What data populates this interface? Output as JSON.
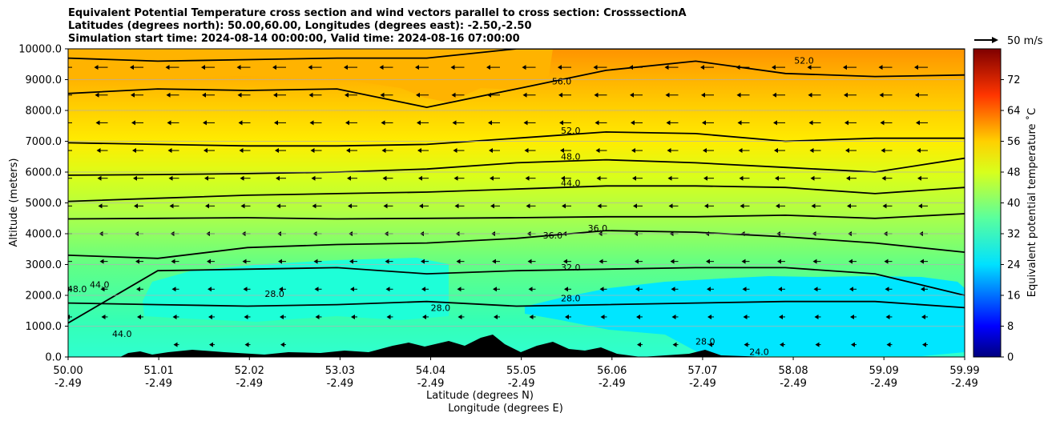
{
  "header": {
    "line1": "Equivalent Potential Temperature cross section and wind vectors parallel to cross section: CrosssectionA",
    "line2": "Latitudes (degrees north): 50.00,60.00, Longitudes (degrees east): -2.50,-2.50",
    "line3": "Simulation start time: 2024-08-14 00:00:00, Valid time: 2024-08-16 07:00:00"
  },
  "chart_data": {
    "type": "contour",
    "ylabel": "Altitude (meters)",
    "xlabel_1": "Latitude (degrees N)",
    "xlabel_2": "Longitude (degrees E)",
    "ylim": [
      0,
      10000
    ],
    "y_ticks": [
      "0.0",
      "1000.0",
      "2000.0",
      "3000.0",
      "4000.0",
      "5000.0",
      "6000.0",
      "7000.0",
      "8000.0",
      "9000.0",
      "10000.0"
    ],
    "x_ticks_lat": [
      "50.00",
      "51.01",
      "52.02",
      "53.03",
      "54.04",
      "55.05",
      "56.06",
      "57.07",
      "58.08",
      "59.09",
      "59.99"
    ],
    "x_ticks_lon": [
      "-2.49",
      "-2.49",
      "-2.49",
      "-2.49",
      "-2.49",
      "-2.49",
      "-2.49",
      "-2.49",
      "-2.49",
      "-2.49",
      "-2.49"
    ],
    "colorbar": {
      "label": "Equivalent potential temperature $^\\circ$C",
      "label_display": "Equivalent potential temperature ˚C",
      "range": [
        0,
        80
      ],
      "ticks": [
        "0",
        "8",
        "16",
        "24",
        "32",
        "40",
        "48",
        "56",
        "64",
        "72"
      ]
    },
    "quiver_key": "50 m/s",
    "contour_levels": [
      "24.0",
      "28.0",
      "32.0",
      "36.0",
      "40.0",
      "44.0",
      "48.0",
      "52.0",
      "56.0",
      "60.0"
    ],
    "contour_labels": [
      {
        "text": "52.0",
        "lat": 58.2,
        "alt": 9520
      },
      {
        "text": "56.0",
        "lat": 55.5,
        "alt": 8850
      },
      {
        "text": "52.0",
        "lat": 55.6,
        "alt": 7250
      },
      {
        "text": "48.0",
        "lat": 55.6,
        "alt": 6400
      },
      {
        "text": "44.0",
        "lat": 55.6,
        "alt": 5550
      },
      {
        "text": "36.0",
        "lat": 55.4,
        "alt": 3850
      },
      {
        "text": "36.0",
        "lat": 55.9,
        "alt": 4080
      },
      {
        "text": "32.0",
        "lat": 55.6,
        "alt": 2800
      },
      {
        "text": "28.0",
        "lat": 55.6,
        "alt": 1800
      },
      {
        "text": "28.0",
        "lat": 52.3,
        "alt": 1950
      },
      {
        "text": "28.0",
        "lat": 54.15,
        "alt": 1500
      },
      {
        "text": "44.0",
        "lat": 50.35,
        "alt": 2250
      },
      {
        "text": "48.0",
        "lat": 50.1,
        "alt": 2100
      },
      {
        "text": "44.0",
        "lat": 50.6,
        "alt": 650
      },
      {
        "text": "28.0",
        "lat": 57.1,
        "alt": 400
      },
      {
        "text": "24.0",
        "lat": 57.7,
        "alt": 60
      }
    ],
    "isentropes": [
      {
        "level": 28,
        "alt": [
          1750,
          1700,
          1650,
          1700,
          1800,
          1650,
          1700,
          1750,
          1800,
          1800,
          1600
        ]
      },
      {
        "level": 32,
        "alt": [
          1100,
          2800,
          2850,
          2900,
          2700,
          2800,
          2850,
          2900,
          2900,
          2700,
          2000
        ]
      },
      {
        "level": 36,
        "alt": [
          3300,
          3200,
          3550,
          3650,
          3700,
          3850,
          4100,
          4050,
          3900,
          3700,
          3400
        ]
      },
      {
        "level": 40,
        "alt": [
          4480,
          4500,
          4520,
          4480,
          4500,
          4520,
          4550,
          4550,
          4600,
          4500,
          4650
        ]
      },
      {
        "level": 44,
        "alt": [
          5050,
          5150,
          5250,
          5300,
          5350,
          5450,
          5550,
          5550,
          5500,
          5300,
          5500
        ]
      },
      {
        "level": 48,
        "alt": [
          5900,
          5920,
          5950,
          6000,
          6100,
          6300,
          6400,
          6300,
          6150,
          6000,
          6450
        ]
      },
      {
        "level": 52,
        "alt": [
          6950,
          6900,
          6850,
          6850,
          6900,
          7100,
          7300,
          7250,
          7000,
          7100,
          7100
        ]
      },
      {
        "level": 56,
        "alt": [
          8550,
          8700,
          8650,
          8700,
          8100,
          8700,
          9300,
          9600,
          9200,
          9100,
          9150
        ]
      },
      {
        "level": 60,
        "alt": [
          9700,
          9600,
          9650,
          9700,
          9700,
          10000,
          10000,
          10000,
          10000,
          10000,
          10000
        ]
      }
    ]
  }
}
